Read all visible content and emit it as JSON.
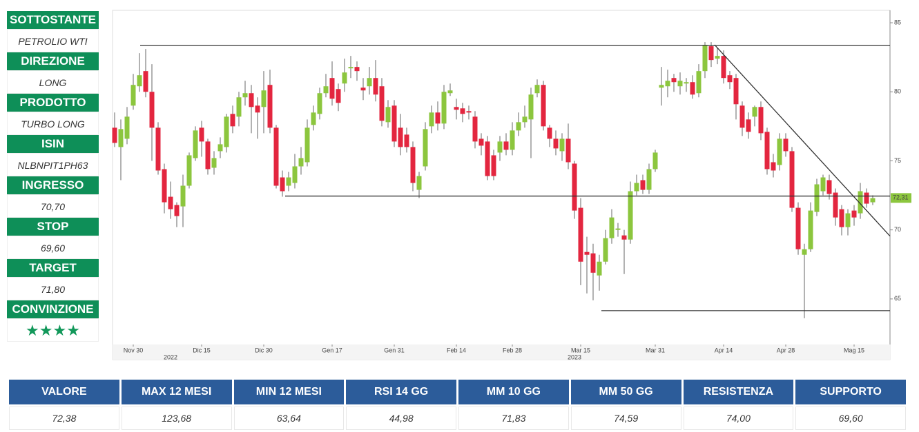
{
  "sidebar": {
    "items": [
      {
        "label": "SOTTOSTANTE",
        "value": "PETROLIO WTI"
      },
      {
        "label": "DIREZIONE",
        "value": "LONG"
      },
      {
        "label": "PRODOTTO",
        "value": "TURBO LONG"
      },
      {
        "label": "ISIN",
        "value": "NLBNPIT1PH63"
      },
      {
        "label": "INGRESSO",
        "value": "70,70"
      },
      {
        "label": "STOP",
        "value": "69,60"
      },
      {
        "label": "TARGET",
        "value": "71,80"
      },
      {
        "label": "CONVINZIONE",
        "value": "★★★★"
      }
    ]
  },
  "chart_data": {
    "type": "candlestick",
    "categories": [
      null,
      null,
      null,
      "Nov 30",
      null,
      null,
      null,
      null,
      null,
      null,
      null,
      null,
      null,
      null,
      "Dic 15",
      null,
      null,
      null,
      null,
      null,
      null,
      null,
      null,
      null,
      "Dic 30",
      null,
      null,
      null,
      null,
      null,
      null,
      null,
      null,
      null,
      null,
      "Gen 17",
      null,
      null,
      null,
      null,
      null,
      null,
      null,
      null,
      null,
      "Gen 31",
      null,
      null,
      null,
      null,
      null,
      null,
      null,
      null,
      null,
      "Feb 14",
      null,
      null,
      null,
      null,
      null,
      null,
      null,
      null,
      "Feb 28",
      null,
      null,
      null,
      null,
      null,
      null,
      null,
      null,
      null,
      null,
      "Mar 15",
      null,
      null,
      null,
      null,
      null,
      null,
      null,
      null,
      null,
      null,
      null,
      "Mar 31",
      null,
      null,
      null,
      null,
      null,
      null,
      null,
      null,
      null,
      null,
      "Apr 14",
      null,
      null,
      null,
      null,
      null,
      null,
      null,
      null,
      null,
      "Apr 28",
      null,
      null,
      null,
      null,
      null,
      null,
      null,
      null,
      null,
      null,
      "Mag 15",
      null,
      null,
      null
    ],
    "year_labels": [
      null,
      null,
      null,
      null,
      null,
      null,
      null,
      null,
      null,
      "2022",
      null,
      null,
      null,
      null,
      null,
      null,
      null,
      null,
      null,
      null,
      null,
      null,
      null,
      null,
      null,
      null,
      null,
      null,
      null,
      null,
      null,
      null,
      null,
      null,
      null,
      null,
      null,
      null,
      null,
      null,
      null,
      null,
      null,
      null,
      null,
      null,
      null,
      null,
      null,
      null,
      null,
      null,
      null,
      null,
      null,
      null,
      null,
      null,
      null,
      null,
      null,
      null,
      null,
      null,
      null,
      null,
      null,
      null,
      null,
      null,
      null,
      null,
      null,
      null,
      "2023",
      null,
      null,
      null,
      null,
      null,
      null,
      null,
      null,
      null,
      null,
      null,
      null,
      null,
      null,
      null,
      null,
      null,
      null,
      null,
      null,
      null,
      null,
      null,
      null,
      null,
      null,
      null,
      null,
      null,
      null,
      null,
      null,
      null,
      null,
      null,
      null,
      null,
      null,
      null,
      null,
      null,
      null,
      null,
      null,
      null,
      null,
      null,
      null
    ],
    "open": [
      77.4,
      76,
      76.6,
      79,
      80.4,
      81.5,
      80,
      77.4,
      74.4,
      72.4,
      71.8,
      71.7,
      73.2,
      75.2,
      77.4,
      76.4,
      74.5,
      75.7,
      76,
      78.4,
      78.2,
      79.6,
      79.9,
      79,
      78.9,
      80.5,
      77.4,
      73.8,
      73.2,
      73.4,
      74.6,
      74.9,
      77.6,
      78.4,
      79.9,
      81,
      80.2,
      80.6,
      81.7,
      81.8,
      80.3,
      80.4,
      81,
      80.4,
      77.8,
      79,
      77.4,
      76.9,
      76,
      72.9,
      74.6,
      77.5,
      78.5,
      77.7,
      79.9,
      78.9,
      78.8,
      78.6,
      78.2,
      76.6,
      76.4,
      75.4,
      75.6,
      76.4,
      75.8,
      77.2,
      77.8,
      78,
      79.9,
      80.5,
      77.4,
      76.6,
      75.7,
      76.6,
      74.8,
      71.6,
      68.4,
      68.3,
      66.7,
      67.7,
      69.4,
      70,
      69.6,
      69.3,
      72.8,
      73.6,
      72.9,
      74.4,
      80.3,
      80.4,
      81,
      80.4,
      80.6,
      80.7,
      79.9,
      81.5,
      83.3,
      82.4,
      82.6,
      81.2,
      81,
      79,
      78,
      78.2,
      78.9,
      77.1,
      74.9,
      74.7,
      76.6,
      75.7,
      71.6,
      68.2,
      68.6,
      71.3,
      72.8,
      73.6,
      72.7,
      71.5,
      70.2,
      71.4,
      71.2,
      72.7,
      72
    ],
    "high": [
      78.5,
      78,
      78.9,
      81.3,
      82.8,
      83.1,
      82,
      77.8,
      74.8,
      73.5,
      72,
      74,
      75.6,
      77.5,
      77.9,
      76.6,
      75.7,
      76.7,
      78.4,
      79,
      80,
      80.8,
      80.5,
      79.6,
      81.5,
      81.6,
      77.6,
      74.3,
      74.2,
      75.5,
      76,
      78,
      79,
      80.3,
      81.3,
      82.2,
      80.6,
      82.4,
      82.6,
      82.2,
      81,
      81.8,
      82.3,
      81,
      79.4,
      79.4,
      78.4,
      77.4,
      76.4,
      74.2,
      77.8,
      79,
      79.3,
      80.5,
      80.6,
      79.5,
      79.2,
      79,
      78.6,
      77,
      76.8,
      75.8,
      76.8,
      77,
      77.8,
      78.5,
      79,
      80.3,
      80.9,
      80.8,
      77.6,
      77.2,
      77,
      77.7,
      75,
      72.3,
      69.5,
      69,
      68.2,
      70,
      71.5,
      70.5,
      70,
      73.5,
      74,
      74,
      74.8,
      75.8,
      81.8,
      81.6,
      81.3,
      81.4,
      81,
      81.2,
      82,
      83.6,
      83.6,
      83.2,
      83,
      81.5,
      81.3,
      79.3,
      78.5,
      79,
      79.3,
      77.4,
      75.5,
      77,
      77,
      76,
      72,
      69,
      72,
      73.7,
      74,
      74,
      73,
      71.8,
      71.5,
      71.8,
      73.4,
      73,
      72.5
    ],
    "low": [
      76,
      73.6,
      76.2,
      78.7,
      80,
      79.6,
      75,
      74,
      71.2,
      70.8,
      70.2,
      70.2,
      73,
      75,
      75.3,
      74,
      74,
      75.2,
      75.6,
      77,
      77.5,
      79,
      77,
      76.6,
      77,
      77,
      73,
      72.4,
      72.8,
      73,
      74,
      74.6,
      77.2,
      78,
      79.6,
      79,
      78.6,
      80,
      81,
      80.8,
      79.4,
      79.8,
      79.3,
      77.5,
      77.4,
      76,
      75.4,
      75.6,
      72.8,
      72.3,
      74.3,
      77,
      77.2,
      77.3,
      79.7,
      78,
      77.8,
      78,
      75.9,
      75.4,
      73.6,
      73.6,
      75,
      75.4,
      75.4,
      76.8,
      77.4,
      75.2,
      79.6,
      77.2,
      76,
      75.4,
      75,
      74.4,
      70.8,
      66,
      65.4,
      64.9,
      65.6,
      67.5,
      69,
      69.5,
      66.8,
      69,
      72.5,
      72.6,
      72.6,
      74.2,
      79,
      79.6,
      80,
      79.8,
      80,
      79.5,
      79.6,
      81,
      81.8,
      82,
      80.6,
      80.2,
      78,
      76.8,
      76.6,
      77.5,
      76.5,
      74,
      73.8,
      74.3,
      75.3,
      71.3,
      68.2,
      63.6,
      68.4,
      71,
      72.5,
      72.2,
      70.3,
      69.6,
      69.6,
      70.3,
      70.8,
      71.6,
      71.8
    ],
    "close": [
      76.3,
      77.3,
      78.2,
      80.5,
      81.2,
      80,
      77.4,
      74.3,
      72,
      71.5,
      71,
      73.2,
      75.4,
      77.2,
      76.4,
      74.4,
      75.2,
      76.2,
      78.2,
      77.5,
      79.6,
      79.9,
      78.9,
      78.5,
      80.1,
      77.4,
      73.2,
      72.8,
      73.8,
      74.6,
      75.2,
      77.4,
      78.5,
      79.9,
      80.4,
      79.5,
      79.2,
      81.4,
      81.8,
      81.5,
      80.1,
      81,
      79.8,
      77.9,
      78.9,
      76.4,
      76,
      76,
      73.4,
      73.9,
      77.3,
      78.5,
      77.7,
      80,
      80.1,
      78.7,
      78.4,
      78.5,
      76.4,
      76.1,
      73.9,
      73.9,
      76.4,
      75.8,
      77.2,
      77.8,
      78.2,
      79.8,
      80.5,
      77.5,
      76.6,
      75.9,
      76.6,
      74.9,
      71.4,
      67.7,
      68.2,
      66.9,
      67.7,
      69.4,
      70.9,
      70.1,
      69.3,
      72.8,
      73.4,
      72.9,
      74.4,
      75.6,
      80.5,
      80.8,
      80.7,
      80.8,
      80.7,
      79.8,
      81.5,
      83.4,
      82.3,
      82.6,
      81,
      80.7,
      79.1,
      77.4,
      77.1,
      78.9,
      77,
      74.4,
      74.3,
      76.6,
      75.7,
      71.6,
      68.6,
      68.6,
      71.4,
      73.3,
      73.8,
      72.6,
      70.9,
      70.2,
      71.2,
      70.9,
      72.8,
      71.9,
      72.3
    ],
    "up_color": "#8cc63e",
    "down_color": "#e3263f",
    "ylim": [
      61.7,
      85.9
    ],
    "yticks": [
      65,
      70,
      75,
      80,
      85
    ],
    "levels": [
      83.35,
      72.45,
      64.15
    ],
    "trendline": [
      83.4,
      69.55
    ],
    "last_price": {
      "value": 72.31,
      "label": "72,31"
    }
  },
  "table": {
    "headers": [
      "VALORE",
      "MAX 12 MESI",
      "MIN 12 MESI",
      "RSI 14 GG",
      "MM 10 GG",
      "MM 50 GG",
      "RESISTENZA",
      "SUPPORTO"
    ],
    "rows": [
      [
        "72,38",
        "123,68",
        "63,64",
        "44,98",
        "71,83",
        "74,59",
        "74,00",
        "69,60"
      ]
    ]
  }
}
